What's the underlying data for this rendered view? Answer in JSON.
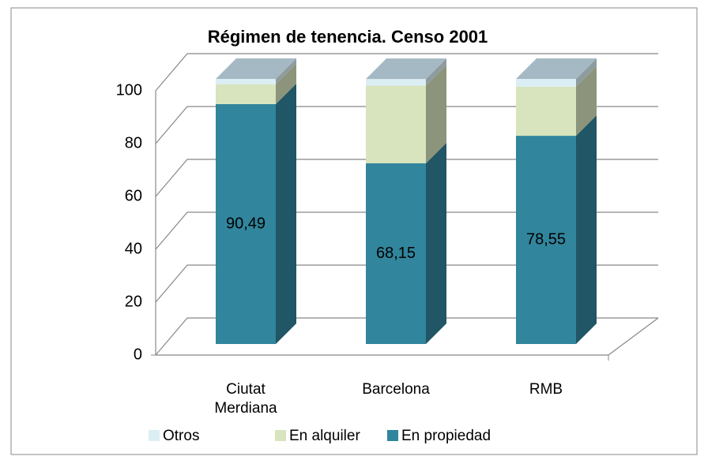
{
  "chart_data": {
    "type": "bar3d_stacked",
    "title": "Régimen de tenencia. Censo 2001",
    "categories": [
      "Ciutat Merdiana",
      "Barcelona",
      "RMB"
    ],
    "series": [
      {
        "name": "Otros",
        "color": "#dbeef4",
        "values": [
          2.0,
          2.5,
          2.95
        ]
      },
      {
        "name": "En alquiler",
        "color": "#d7e4bd",
        "values": [
          7.5,
          29.3,
          18.5
        ]
      },
      {
        "name": "En propiedad",
        "color": "#31859c",
        "values": [
          90.49,
          68.15,
          78.55
        ],
        "value_labels": [
          "90,49",
          "68,15",
          "78,55"
        ]
      }
    ],
    "ylim": [
      0,
      100
    ],
    "yticks": [
      0,
      20,
      40,
      60,
      80,
      100
    ],
    "grid": true,
    "legend": "bottom"
  }
}
